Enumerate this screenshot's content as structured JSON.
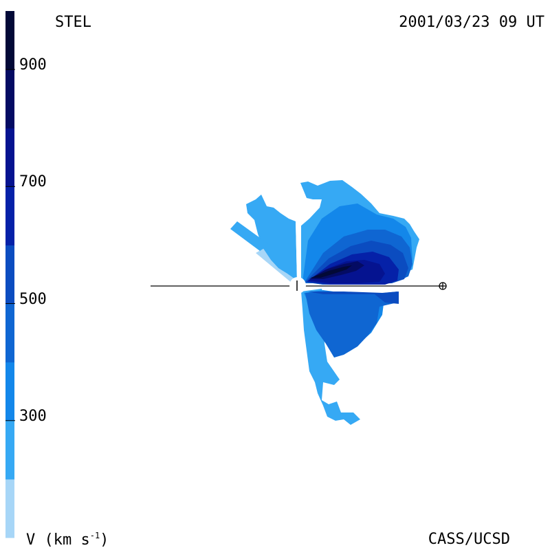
{
  "chart_data": {
    "type": "heatmap",
    "title_left": "STEL",
    "title_right": "2001/03/23 09 UT",
    "credit": "CASS/UCSD",
    "colorbar": {
      "label_main": "V (km s",
      "label_sup": "-1",
      "label_close": ")",
      "range": [
        100,
        1000
      ],
      "ticks": [
        "900",
        "700",
        "500",
        "300"
      ],
      "tick_values": [
        900,
        700,
        500,
        300
      ],
      "bins": [
        {
          "from": 100,
          "to": 200,
          "color": "#a7d6f7"
        },
        {
          "from": 200,
          "to": 300,
          "color": "#36a9f4"
        },
        {
          "from": 300,
          "to": 400,
          "color": "#1387ea"
        },
        {
          "from": 400,
          "to": 500,
          "color": "#0f66d2"
        },
        {
          "from": 500,
          "to": 600,
          "color": "#0b4cc0"
        },
        {
          "from": 600,
          "to": 700,
          "color": "#0521a8"
        },
        {
          "from": 700,
          "to": 800,
          "color": "#051390"
        },
        {
          "from": 800,
          "to": 900,
          "color": "#040b63"
        },
        {
          "from": 900,
          "to": 1000,
          "color": "#020937"
        }
      ]
    },
    "symbols": {
      "earth": "⊕"
    }
  }
}
